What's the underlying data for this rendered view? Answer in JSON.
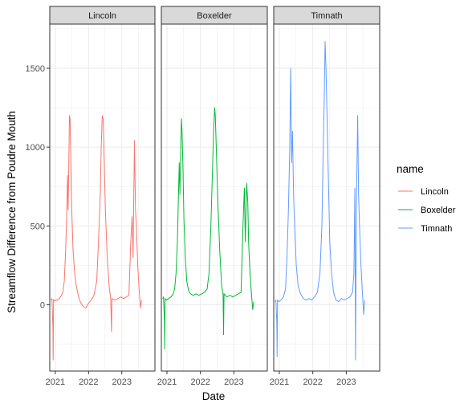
{
  "chart_data": {
    "type": "line",
    "xlabel": "Date",
    "ylabel": "Streamflow Difference from Poudre Mouth",
    "ylim": [
      -420,
      1780
    ],
    "xlim": [
      "2020-11-01",
      "2023-12-31"
    ],
    "x_ticks": [
      "2021",
      "2022",
      "2023"
    ],
    "y_ticks": [
      0,
      500,
      1000,
      1500
    ],
    "grid": true,
    "legend_position": "right",
    "legend_title": "name",
    "facets": [
      {
        "name": "Lincoln",
        "color": "#F8766D",
        "points": [
          [
            "2020-11-15",
            30
          ],
          [
            "2020-11-25",
            40
          ],
          [
            "2020-12-05",
            -140
          ],
          [
            "2020-12-08",
            -350
          ],
          [
            "2020-12-12",
            35
          ],
          [
            "2020-12-28",
            25
          ],
          [
            "2021-01-20",
            30
          ],
          [
            "2021-02-15",
            40
          ],
          [
            "2021-03-10",
            60
          ],
          [
            "2021-03-25",
            80
          ],
          [
            "2021-04-10",
            150
          ],
          [
            "2021-04-25",
            350
          ],
          [
            "2021-05-05",
            550
          ],
          [
            "2021-05-15",
            820
          ],
          [
            "2021-05-22",
            600
          ],
          [
            "2021-06-01",
            1000
          ],
          [
            "2021-06-05",
            1200
          ],
          [
            "2021-06-12",
            1180
          ],
          [
            "2021-06-20",
            900
          ],
          [
            "2021-07-01",
            600
          ],
          [
            "2021-07-15",
            350
          ],
          [
            "2021-08-01",
            200
          ],
          [
            "2021-08-20",
            120
          ],
          [
            "2021-09-10",
            60
          ],
          [
            "2021-10-01",
            20
          ],
          [
            "2021-11-01",
            -10
          ],
          [
            "2021-12-01",
            -20
          ],
          [
            "2022-01-01",
            10
          ],
          [
            "2022-02-01",
            30
          ],
          [
            "2022-03-01",
            60
          ],
          [
            "2022-04-01",
            150
          ],
          [
            "2022-04-20",
            400
          ],
          [
            "2022-05-10",
            700
          ],
          [
            "2022-05-20",
            1000
          ],
          [
            "2022-06-01",
            1200
          ],
          [
            "2022-06-10",
            1180
          ],
          [
            "2022-06-20",
            950
          ],
          [
            "2022-07-05",
            600
          ],
          [
            "2022-07-25",
            300
          ],
          [
            "2022-08-15",
            120
          ],
          [
            "2022-09-01",
            40
          ],
          [
            "2022-09-10",
            -170
          ],
          [
            "2022-09-15",
            40
          ],
          [
            "2022-10-15",
            30
          ],
          [
            "2022-11-20",
            40
          ],
          [
            "2022-12-20",
            50
          ],
          [
            "2023-01-20",
            40
          ],
          [
            "2023-02-20",
            50
          ],
          [
            "2023-03-20",
            60
          ],
          [
            "2023-04-10",
            400
          ],
          [
            "2023-04-25",
            560
          ],
          [
            "2023-05-05",
            300
          ],
          [
            "2023-05-20",
            1040
          ],
          [
            "2023-06-01",
            600
          ],
          [
            "2023-06-10",
            500
          ],
          [
            "2023-06-25",
            250
          ],
          [
            "2023-07-10",
            100
          ],
          [
            "2023-07-25",
            -20
          ],
          [
            "2023-08-05",
            30
          ]
        ]
      },
      {
        "name": "Boxelder",
        "color": "#00BA38",
        "points": [
          [
            "2020-11-15",
            40
          ],
          [
            "2020-11-25",
            50
          ],
          [
            "2020-12-05",
            -100
          ],
          [
            "2020-12-08",
            -280
          ],
          [
            "2020-12-12",
            40
          ],
          [
            "2020-12-28",
            30
          ],
          [
            "2021-01-20",
            40
          ],
          [
            "2021-02-15",
            50
          ],
          [
            "2021-03-10",
            70
          ],
          [
            "2021-03-25",
            100
          ],
          [
            "2021-04-10",
            200
          ],
          [
            "2021-04-25",
            400
          ],
          [
            "2021-05-05",
            650
          ],
          [
            "2021-05-15",
            900
          ],
          [
            "2021-05-22",
            700
          ],
          [
            "2021-06-01",
            1000
          ],
          [
            "2021-06-08",
            1180
          ],
          [
            "2021-06-15",
            1100
          ],
          [
            "2021-06-25",
            850
          ],
          [
            "2021-07-05",
            550
          ],
          [
            "2021-07-20",
            300
          ],
          [
            "2021-08-05",
            150
          ],
          [
            "2021-08-25",
            90
          ],
          [
            "2021-09-15",
            70
          ],
          [
            "2021-10-15",
            60
          ],
          [
            "2021-11-15",
            70
          ],
          [
            "2021-12-15",
            60
          ],
          [
            "2022-01-15",
            70
          ],
          [
            "2022-02-15",
            80
          ],
          [
            "2022-03-15",
            100
          ],
          [
            "2022-04-05",
            200
          ],
          [
            "2022-04-25",
            500
          ],
          [
            "2022-05-10",
            800
          ],
          [
            "2022-05-25",
            1100
          ],
          [
            "2022-06-05",
            1250
          ],
          [
            "2022-06-12",
            1200
          ],
          [
            "2022-06-25",
            950
          ],
          [
            "2022-07-10",
            650
          ],
          [
            "2022-07-30",
            350
          ],
          [
            "2022-08-20",
            120
          ],
          [
            "2022-09-05",
            70
          ],
          [
            "2022-09-10",
            -190
          ],
          [
            "2022-09-15",
            70
          ],
          [
            "2022-10-15",
            50
          ],
          [
            "2022-11-20",
            60
          ],
          [
            "2022-12-20",
            50
          ],
          [
            "2023-01-20",
            60
          ],
          [
            "2023-02-20",
            70
          ],
          [
            "2023-03-20",
            80
          ],
          [
            "2023-04-10",
            500
          ],
          [
            "2023-04-25",
            740
          ],
          [
            "2023-05-05",
            400
          ],
          [
            "2023-05-20",
            770
          ],
          [
            "2023-06-01",
            650
          ],
          [
            "2023-06-10",
            400
          ],
          [
            "2023-06-25",
            200
          ],
          [
            "2023-07-10",
            80
          ],
          [
            "2023-07-25",
            -30
          ],
          [
            "2023-08-05",
            20
          ]
        ]
      },
      {
        "name": "Timnath",
        "color": "#619CFF",
        "points": [
          [
            "2020-11-15",
            20
          ],
          [
            "2020-11-25",
            30
          ],
          [
            "2020-12-05",
            -120
          ],
          [
            "2020-12-08",
            -330
          ],
          [
            "2020-12-12",
            30
          ],
          [
            "2020-12-28",
            20
          ],
          [
            "2021-01-20",
            30
          ],
          [
            "2021-02-15",
            50
          ],
          [
            "2021-03-10",
            100
          ],
          [
            "2021-03-25",
            300
          ],
          [
            "2021-04-10",
            600
          ],
          [
            "2021-04-25",
            1000
          ],
          [
            "2021-05-05",
            1500
          ],
          [
            "2021-05-15",
            900
          ],
          [
            "2021-05-25",
            1100
          ],
          [
            "2021-06-05",
            700
          ],
          [
            "2021-06-20",
            450
          ],
          [
            "2021-07-05",
            250
          ],
          [
            "2021-07-25",
            120
          ],
          [
            "2021-08-20",
            70
          ],
          [
            "2021-09-20",
            40
          ],
          [
            "2021-10-20",
            30
          ],
          [
            "2021-11-20",
            40
          ],
          [
            "2021-12-20",
            30
          ],
          [
            "2022-01-20",
            50
          ],
          [
            "2022-02-20",
            80
          ],
          [
            "2022-03-20",
            200
          ],
          [
            "2022-04-10",
            500
          ],
          [
            "2022-04-25",
            1000
          ],
          [
            "2022-05-05",
            1300
          ],
          [
            "2022-05-15",
            1670
          ],
          [
            "2022-05-25",
            1500
          ],
          [
            "2022-06-05",
            1200
          ],
          [
            "2022-06-20",
            800
          ],
          [
            "2022-07-05",
            400
          ],
          [
            "2022-07-25",
            200
          ],
          [
            "2022-08-15",
            80
          ],
          [
            "2022-09-10",
            30
          ],
          [
            "2022-10-10",
            20
          ],
          [
            "2022-11-10",
            40
          ],
          [
            "2022-12-10",
            30
          ],
          [
            "2023-01-10",
            40
          ],
          [
            "2023-02-10",
            50
          ],
          [
            "2023-03-10",
            80
          ],
          [
            "2023-03-25",
            200
          ],
          [
            "2023-04-05",
            740
          ],
          [
            "2023-04-12",
            -350
          ],
          [
            "2023-04-20",
            600
          ],
          [
            "2023-05-05",
            1200
          ],
          [
            "2023-05-15",
            700
          ],
          [
            "2023-05-25",
            500
          ],
          [
            "2023-06-10",
            250
          ],
          [
            "2023-06-25",
            80
          ],
          [
            "2023-07-10",
            -60
          ],
          [
            "2023-07-20",
            30
          ]
        ]
      }
    ]
  }
}
